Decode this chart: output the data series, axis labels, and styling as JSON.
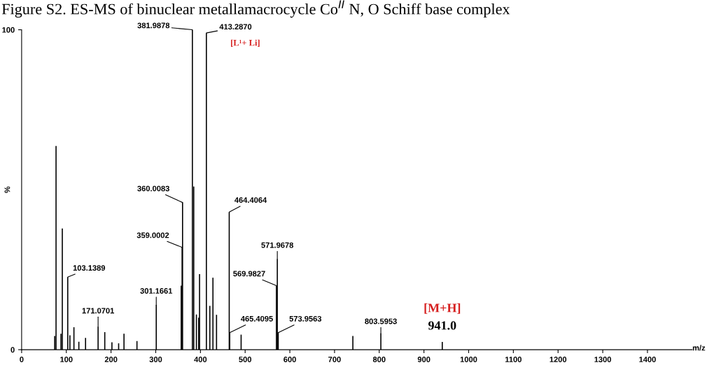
{
  "chart_data": {
    "type": "bar",
    "title": "Figure S2. ES-MS of binuclear metallamacrocycle Co$^{II}$ N, O Schiff base complex",
    "xlabel": "m/z",
    "ylabel": "%",
    "x": [
      74,
      77,
      88,
      91,
      103.1389,
      108,
      117,
      128,
      143,
      171.0701,
      186,
      202,
      217,
      229,
      258,
      301.1661,
      357,
      359.0002,
      360.0083,
      381.9878,
      385,
      391,
      396,
      398,
      413.287,
      421,
      428,
      436,
      464.4064,
      465.4095,
      491,
      569.9827,
      571.9678,
      573.9563,
      741,
      803.5953,
      941.0
    ],
    "series": [
      {
        "color": "#000000",
        "values": [
          4.3,
          63.7,
          5,
          37.9,
          22.7,
          4.5,
          7,
          2.5,
          3.7,
          7.2,
          5.5,
          2.3,
          2,
          5,
          2.7,
          14,
          20,
          32,
          46,
          100,
          51,
          11,
          10,
          23.6,
          99,
          13.7,
          22.5,
          10.9,
          43,
          5.3,
          4.7,
          20,
          28.3,
          5.3,
          4.3,
          5.1,
          2.4
        ]
      }
    ],
    "xlim": [
      0,
      1500
    ],
    "ylim": [
      0,
      100
    ],
    "xticks": [
      0,
      100,
      200,
      300,
      400,
      500,
      600,
      700,
      800,
      900,
      1000,
      1100,
      1200,
      1300,
      1400
    ],
    "yticks": [
      0,
      100
    ],
    "annotations": [
      {
        "text": "381.9878",
        "x": 381.9878,
        "y": 100
      },
      {
        "text": "413.2870",
        "x": 413.287,
        "y": 99
      },
      {
        "text": "[L¹+ Li]",
        "x": 413.287,
        "y": 99
      },
      {
        "text": "360.0083",
        "x": 360.0083,
        "y": 46
      },
      {
        "text": "359.0002",
        "x": 359.0002,
        "y": 32
      },
      {
        "text": "464.4064",
        "x": 464.4064,
        "y": 43
      },
      {
        "text": "571.9678",
        "x": 571.9678,
        "y": 28.3
      },
      {
        "text": "569.9827",
        "x": 569.9827,
        "y": 20
      },
      {
        "text": "573.9563",
        "x": 573.9563,
        "y": 5.3
      },
      {
        "text": "465.4095",
        "x": 465.4095,
        "y": 5.3
      },
      {
        "text": "301.1661",
        "x": 301.1661,
        "y": 14
      },
      {
        "text": "103.1389",
        "x": 103.1389,
        "y": 22.7
      },
      {
        "text": "171.0701",
        "x": 171.0701,
        "y": 7.2
      },
      {
        "text": "803.5953",
        "x": 803.5953,
        "y": 5.1
      },
      {
        "text": "941.0",
        "x": 941.0,
        "y": 2.4
      },
      {
        "text": "[M+H]",
        "x": 941.0,
        "y": 2.4
      }
    ],
    "grid": false,
    "legend": false
  }
}
